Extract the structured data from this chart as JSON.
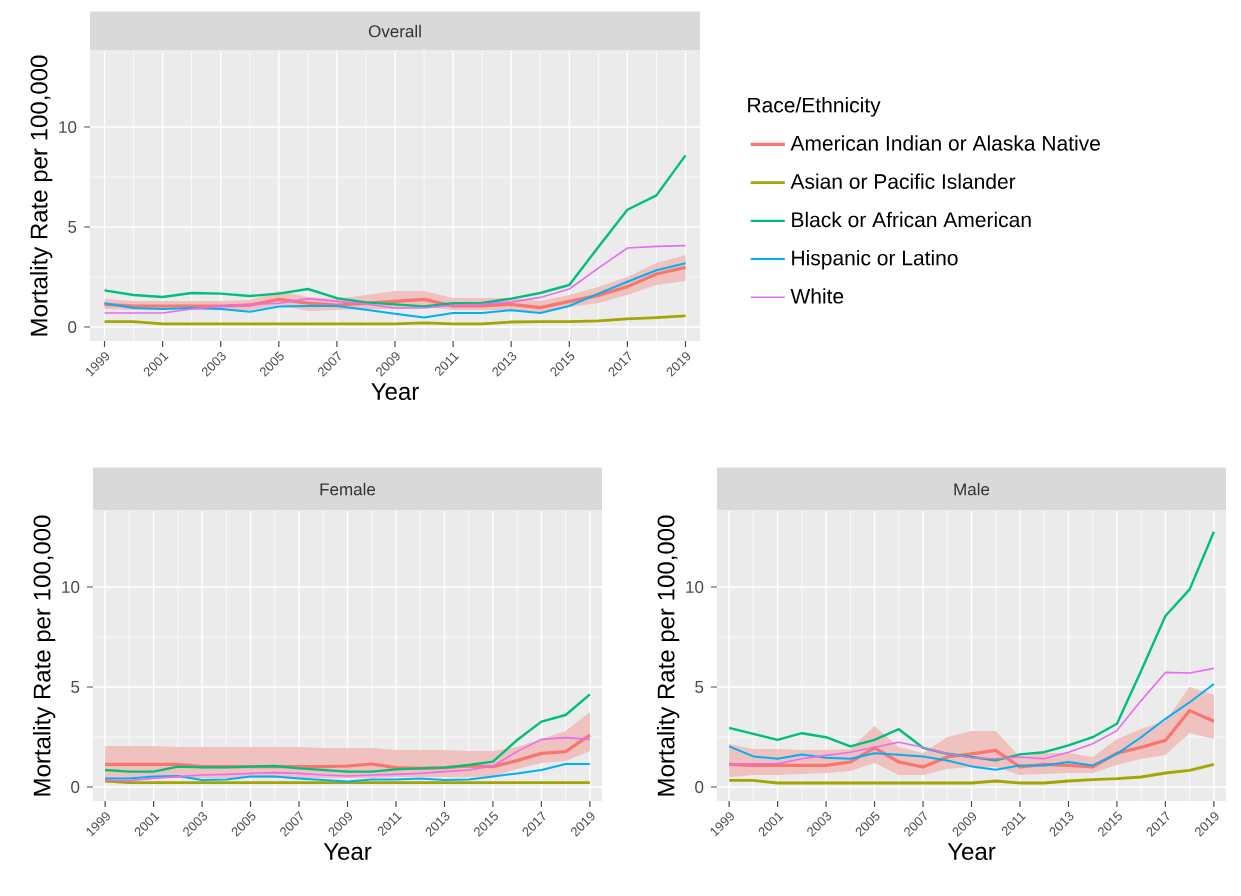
{
  "chart_data": [
    {
      "type": "line",
      "title": "Overall",
      "xlabel": "Year",
      "ylabel": "Mortality Rate per 100,000",
      "legend_title": "Race/Ethnicity",
      "legend": "right",
      "grid": true,
      "x": [
        1999,
        2000,
        2001,
        2002,
        2003,
        2004,
        2005,
        2006,
        2007,
        2008,
        2009,
        2010,
        2011,
        2012,
        2013,
        2014,
        2015,
        2016,
        2017,
        2018,
        2019
      ],
      "xlim": [
        1998.5,
        2019.5
      ],
      "xticks": [
        1999,
        2001,
        2003,
        2005,
        2007,
        2009,
        2011,
        2013,
        2015,
        2017,
        2019
      ],
      "ylim": [
        -0.7,
        13.8
      ],
      "yticks": [
        0,
        5,
        10
      ],
      "series": [
        {
          "name": "American Indian or Alaska Native",
          "color": "#f8766d",
          "values": [
            1.13,
            1.05,
            1.05,
            1.05,
            1.05,
            1.09,
            1.38,
            1.19,
            1.09,
            1.19,
            1.28,
            1.38,
            1.05,
            1.05,
            1.13,
            0.97,
            1.28,
            1.58,
            2.02,
            2.65,
            2.98
          ],
          "lower": [
            0.9,
            0.85,
            0.85,
            0.85,
            0.85,
            0.85,
            1.1,
            0.8,
            0.85,
            0.9,
            0.9,
            1.0,
            0.85,
            0.85,
            0.85,
            0.75,
            1.0,
            1.2,
            1.6,
            2.1,
            2.3
          ],
          "upper": [
            1.4,
            1.3,
            1.3,
            1.3,
            1.3,
            1.35,
            1.8,
            1.5,
            1.4,
            1.6,
            1.8,
            1.8,
            1.45,
            1.45,
            1.45,
            1.3,
            1.6,
            2.0,
            2.5,
            3.2,
            3.6
          ]
        },
        {
          "name": "Asian or Pacific Islander",
          "color": "#a3a500",
          "values": [
            0.27,
            0.27,
            0.16,
            0.16,
            0.16,
            0.16,
            0.16,
            0.16,
            0.16,
            0.16,
            0.16,
            0.21,
            0.16,
            0.16,
            0.25,
            0.27,
            0.27,
            0.31,
            0.41,
            0.47,
            0.56
          ]
        },
        {
          "name": "Black or African American",
          "color": "#00bf7d",
          "values": [
            1.83,
            1.6,
            1.5,
            1.7,
            1.67,
            1.55,
            1.67,
            1.9,
            1.44,
            1.23,
            1.13,
            1.03,
            1.19,
            1.2,
            1.42,
            1.7,
            2.1,
            4.0,
            5.86,
            6.58,
            8.58
          ]
        },
        {
          "name": "Hispanic or Latino",
          "color": "#00b0f6",
          "values": [
            1.19,
            0.95,
            0.9,
            0.95,
            0.9,
            0.76,
            1.03,
            1.05,
            1.05,
            0.86,
            0.66,
            0.47,
            0.7,
            0.7,
            0.84,
            0.7,
            1.05,
            1.67,
            2.26,
            2.84,
            3.19
          ]
        },
        {
          "name": "White",
          "color": "#e76bf3",
          "values": [
            0.7,
            0.7,
            0.7,
            0.9,
            1.03,
            1.13,
            1.19,
            1.42,
            1.28,
            1.15,
            0.95,
            0.95,
            1.09,
            1.13,
            1.25,
            1.48,
            1.9,
            2.94,
            3.95,
            4.03,
            4.07
          ]
        }
      ]
    },
    {
      "type": "line",
      "title": "Female",
      "xlabel": "Year",
      "ylabel": "Mortality Rate per 100,000",
      "grid": true,
      "x": [
        1999,
        2000,
        2001,
        2002,
        2003,
        2004,
        2005,
        2006,
        2007,
        2008,
        2009,
        2010,
        2011,
        2012,
        2013,
        2014,
        2015,
        2016,
        2017,
        2018,
        2019
      ],
      "xlim": [
        1998.5,
        2019.5
      ],
      "xticks": [
        1999,
        2001,
        2003,
        2005,
        2007,
        2009,
        2011,
        2013,
        2015,
        2017,
        2019
      ],
      "ylim": [
        -0.7,
        13.8
      ],
      "yticks": [
        0,
        5,
        10
      ],
      "series": [
        {
          "color": "#f8766d",
          "values": [
            1.13,
            1.13,
            1.13,
            1.13,
            1.02,
            1.02,
            1.02,
            1.02,
            1.02,
            1.02,
            1.05,
            1.15,
            0.97,
            0.93,
            0.97,
            1.05,
            1.02,
            1.32,
            1.68,
            1.77,
            2.6
          ],
          "lower": [
            0.45,
            0.45,
            0.45,
            0.45,
            0.45,
            0.45,
            0.45,
            0.45,
            0.45,
            0.45,
            0.45,
            0.45,
            0.5,
            0.5,
            0.5,
            0.5,
            0.52,
            0.9,
            1.2,
            1.3,
            1.8
          ],
          "upper": [
            2.05,
            2.05,
            2.05,
            2.0,
            2.0,
            2.0,
            2.0,
            2.0,
            2.0,
            1.95,
            1.95,
            1.95,
            1.85,
            1.85,
            1.85,
            1.8,
            1.8,
            2.0,
            2.4,
            2.8,
            3.75
          ]
        },
        {
          "color": "#a3a500",
          "values": [
            0.3,
            0.22,
            0.22,
            0.22,
            0.22,
            0.22,
            0.22,
            0.22,
            0.22,
            0.22,
            0.22,
            0.22,
            0.22,
            0.22,
            0.22,
            0.22,
            0.22,
            0.22,
            0.22,
            0.22,
            0.22
          ]
        },
        {
          "color": "#00bf7d",
          "values": [
            0.85,
            0.77,
            0.77,
            1.02,
            0.98,
            0.98,
            1.02,
            1.05,
            0.93,
            0.85,
            0.77,
            0.77,
            0.88,
            0.93,
            0.97,
            1.1,
            1.27,
            2.35,
            3.27,
            3.6,
            4.63
          ]
        },
        {
          "color": "#00b0f6",
          "values": [
            0.43,
            0.43,
            0.52,
            0.55,
            0.35,
            0.38,
            0.52,
            0.52,
            0.43,
            0.35,
            0.27,
            0.38,
            0.38,
            0.43,
            0.35,
            0.38,
            0.52,
            0.68,
            0.85,
            1.15,
            1.15
          ]
        },
        {
          "color": "#e76bf3",
          "values": [
            0.35,
            0.32,
            0.43,
            0.52,
            0.6,
            0.63,
            0.68,
            0.72,
            0.68,
            0.6,
            0.55,
            0.6,
            0.63,
            0.68,
            0.77,
            0.85,
            1.05,
            1.77,
            2.38,
            2.47,
            2.38
          ]
        }
      ]
    },
    {
      "type": "line",
      "title": "Male",
      "xlabel": "Year",
      "ylabel": "Mortality Rate per 100,000",
      "grid": true,
      "x": [
        1999,
        2000,
        2001,
        2002,
        2003,
        2004,
        2005,
        2006,
        2007,
        2008,
        2009,
        2010,
        2011,
        2012,
        2013,
        2014,
        2015,
        2016,
        2017,
        2018,
        2019
      ],
      "xlim": [
        1998.5,
        2019.5
      ],
      "xticks": [
        1999,
        2001,
        2003,
        2005,
        2007,
        2009,
        2011,
        2013,
        2015,
        2017,
        2019
      ],
      "ylim": [
        -0.7,
        13.8
      ],
      "yticks": [
        0,
        5,
        10
      ],
      "series": [
        {
          "color": "#f8766d",
          "values": [
            1.13,
            1.08,
            1.08,
            1.08,
            1.08,
            1.25,
            1.96,
            1.25,
            1.0,
            1.5,
            1.66,
            1.83,
            1.0,
            1.13,
            1.08,
            1.0,
            1.69,
            1.99,
            2.33,
            3.82,
            3.29
          ],
          "lower": [
            0.5,
            0.6,
            0.6,
            0.65,
            0.7,
            0.8,
            1.2,
            0.6,
            0.6,
            0.9,
            1.0,
            1.0,
            0.6,
            0.65,
            0.7,
            0.7,
            1.1,
            1.4,
            1.6,
            2.7,
            2.4
          ],
          "upper": [
            2.15,
            1.9,
            1.9,
            1.85,
            1.85,
            1.9,
            3.05,
            2.0,
            1.7,
            2.5,
            2.8,
            2.8,
            1.5,
            1.7,
            1.7,
            1.5,
            2.4,
            2.9,
            3.3,
            5.0,
            4.6
          ]
        },
        {
          "color": "#a3a500",
          "values": [
            0.33,
            0.33,
            0.2,
            0.2,
            0.2,
            0.2,
            0.2,
            0.2,
            0.2,
            0.2,
            0.2,
            0.3,
            0.2,
            0.2,
            0.3,
            0.37,
            0.42,
            0.5,
            0.7,
            0.83,
            1.13
          ]
        },
        {
          "color": "#00bf7d",
          "values": [
            2.96,
            2.66,
            2.36,
            2.69,
            2.49,
            2.03,
            2.36,
            2.89,
            1.96,
            1.66,
            1.5,
            1.33,
            1.63,
            1.74,
            2.08,
            2.49,
            3.16,
            5.81,
            8.55,
            9.88,
            12.76
          ]
        },
        {
          "color": "#00b0f6",
          "values": [
            2.03,
            1.53,
            1.41,
            1.63,
            1.46,
            1.41,
            1.69,
            1.61,
            1.53,
            1.33,
            1.03,
            0.86,
            1.08,
            1.08,
            1.25,
            1.08,
            1.66,
            2.49,
            3.41,
            4.24,
            5.15
          ]
        },
        {
          "color": "#e76bf3",
          "values": [
            1.16,
            1.16,
            1.16,
            1.41,
            1.58,
            1.74,
            1.99,
            2.24,
            1.99,
            1.66,
            1.46,
            1.41,
            1.5,
            1.41,
            1.74,
            2.16,
            2.82,
            4.32,
            5.73,
            5.7,
            5.93
          ]
        }
      ]
    }
  ]
}
